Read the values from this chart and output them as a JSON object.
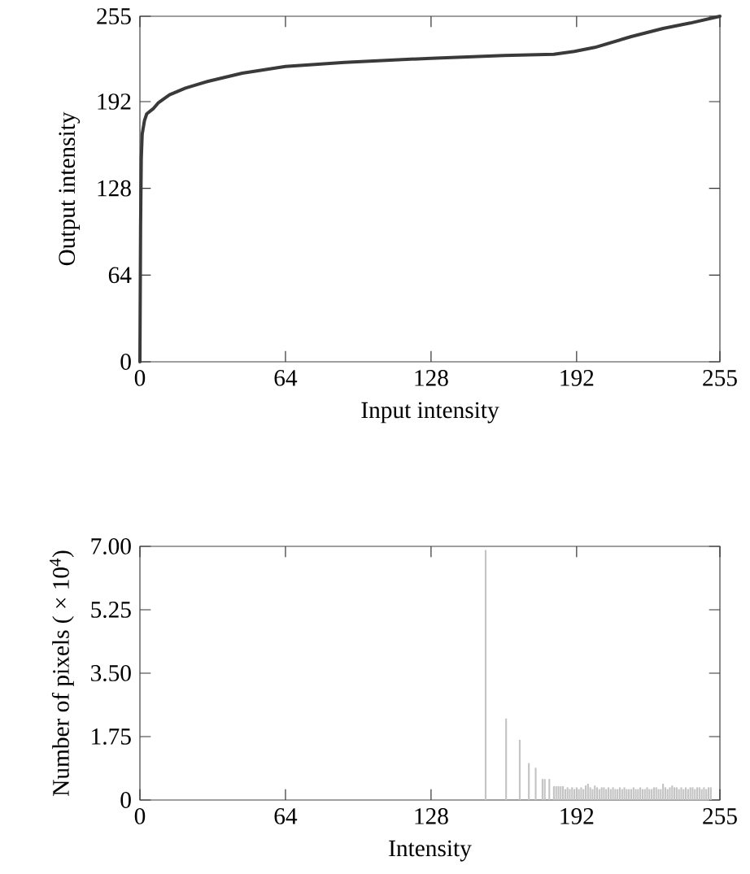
{
  "chart_data": [
    {
      "type": "line",
      "xlabel": "Input intensity",
      "ylabel": "Output intensity",
      "series": [
        {
          "color": "#3a3a3a",
          "x": [
            0,
            0.3,
            0.6,
            1,
            2,
            3,
            6,
            8,
            13,
            20,
            30,
            45,
            64,
            90,
            128,
            160,
            182,
            191,
            200,
            216,
            230,
            242,
            255
          ],
          "values": [
            0,
            100,
            150,
            168,
            178,
            183,
            187,
            191,
            197,
            202,
            207,
            213,
            218,
            221,
            224,
            226,
            227,
            229,
            232,
            240,
            246,
            250,
            255
          ]
        }
      ],
      "xlim": [
        0,
        255
      ],
      "ylim": [
        0,
        255
      ],
      "xticks": [
        0,
        64,
        128,
        192,
        255
      ],
      "yticks": [
        0,
        64,
        128,
        192,
        255
      ]
    },
    {
      "type": "bar",
      "xlabel": "Intensity",
      "ylabel": "Number of pixels ( × 10$^{4}$)",
      "series": [
        {
          "color": "#c4c4c4",
          "x": [
            152,
            161,
            167,
            171,
            174,
            177,
            178,
            180,
            182,
            183,
            184,
            185,
            186,
            187,
            188,
            189,
            190,
            191,
            192,
            193,
            194,
            195,
            196,
            197,
            198,
            199,
            200,
            201,
            202,
            203,
            204,
            205,
            206,
            207,
            208,
            209,
            210,
            211,
            212,
            213,
            214,
            215,
            216,
            217,
            218,
            219,
            220,
            221,
            222,
            223,
            224,
            225,
            226,
            227,
            228,
            229,
            230,
            231,
            232,
            233,
            234,
            235,
            236,
            237,
            238,
            239,
            240,
            241,
            242,
            243,
            244,
            245,
            246,
            247,
            248,
            249,
            250,
            251
          ],
          "values": [
            6.9,
            2.25,
            1.66,
            1.02,
            0.89,
            0.58,
            0.58,
            0.58,
            0.38,
            0.38,
            0.38,
            0.38,
            0.38,
            0.3,
            0.35,
            0.3,
            0.35,
            0.3,
            0.35,
            0.3,
            0.35,
            0.3,
            0.4,
            0.45,
            0.35,
            0.3,
            0.4,
            0.35,
            0.3,
            0.35,
            0.35,
            0.3,
            0.35,
            0.3,
            0.35,
            0.3,
            0.3,
            0.35,
            0.3,
            0.35,
            0.3,
            0.3,
            0.3,
            0.35,
            0.3,
            0.3,
            0.35,
            0.3,
            0.3,
            0.35,
            0.3,
            0.3,
            0.35,
            0.35,
            0.3,
            0.3,
            0.45,
            0.35,
            0.3,
            0.35,
            0.4,
            0.35,
            0.35,
            0.3,
            0.35,
            0.3,
            0.35,
            0.3,
            0.35,
            0.35,
            0.3,
            0.35,
            0.35,
            0.3,
            0.35,
            0.3,
            0.35,
            0.35
          ]
        }
      ],
      "xlim": [
        0,
        255
      ],
      "ylim": [
        0,
        7
      ],
      "xticks": [
        0,
        64,
        128,
        192,
        255
      ],
      "yticks": [
        0,
        {
          "value": 1.75,
          "label": "1.75"
        },
        {
          "value": 3.5,
          "label": "3.50"
        },
        {
          "value": 5.25,
          "label": "5.25"
        },
        {
          "value": 7,
          "label": "7.00"
        }
      ]
    }
  ]
}
